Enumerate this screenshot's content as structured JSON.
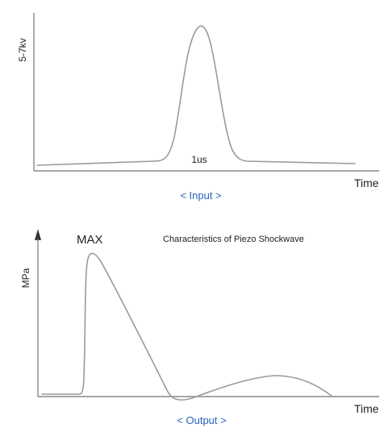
{
  "input_panel": {
    "y_axis_label": "5-7kv",
    "pulse_width_label": "1us",
    "x_axis_label": "Time",
    "caption": "< Input >"
  },
  "output_panel": {
    "peak_label": "MAX",
    "title": "Characteristics of Piezo Shockwave",
    "y_axis_label": "MPa",
    "x_axis_label": "Time",
    "caption": "< Output >"
  },
  "colors": {
    "axis": "#888888",
    "curve": "#9a9a9a",
    "caption": "#2a63b8",
    "text": "#222222"
  }
}
